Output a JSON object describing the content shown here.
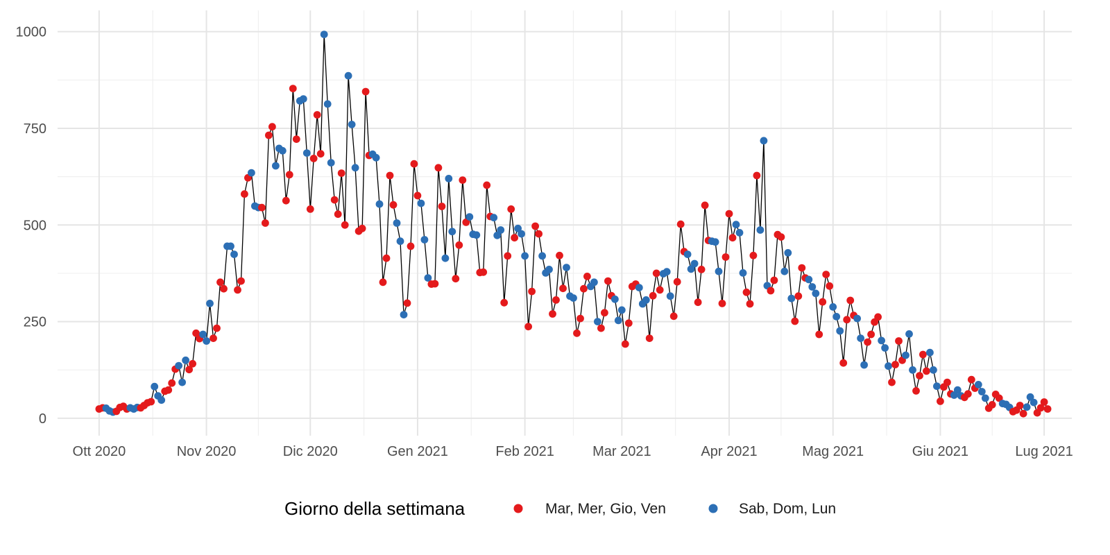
{
  "chart_data": {
    "type": "scatter",
    "title": "",
    "xlabel": "",
    "ylabel": "",
    "x_start_date": "2020-10-01",
    "xlim": [
      "2020-09-19",
      "2021-07-09"
    ],
    "ylim": [
      -45,
      1055
    ],
    "y_ticks": [
      0,
      250,
      500,
      750,
      1000
    ],
    "x_ticks": [
      {
        "date": "2020-10-01",
        "label": "Ott 2020"
      },
      {
        "date": "2020-11-01",
        "label": "Nov 2020"
      },
      {
        "date": "2020-12-01",
        "label": "Dic 2020"
      },
      {
        "date": "2021-01-01",
        "label": "Gen 2021"
      },
      {
        "date": "2021-02-01",
        "label": "Feb 2021"
      },
      {
        "date": "2021-03-01",
        "label": "Mar 2021"
      },
      {
        "date": "2021-04-01",
        "label": "Apr 2021"
      },
      {
        "date": "2021-05-01",
        "label": "Mag 2021"
      },
      {
        "date": "2021-06-01",
        "label": "Giu 2021"
      },
      {
        "date": "2021-07-01",
        "label": "Lug 2021"
      }
    ],
    "grid": true,
    "line_color": "#000000",
    "legend": {
      "position": "bottom",
      "title": "Giorno della settimana",
      "entries": [
        {
          "label": "Mar, Mer, Gio, Ven",
          "color": "#E41A1C"
        },
        {
          "label": "Sab, Dom, Lun",
          "color": "#2C6FB5"
        }
      ]
    },
    "series_note": "values are daily counts starting 2020-10-01 (Thursday); day-of-week determines color group",
    "values": [
      24,
      27,
      26,
      19,
      16,
      18,
      28,
      31,
      24,
      27,
      24,
      28,
      27,
      33,
      40,
      43,
      82,
      58,
      47,
      70,
      73,
      91,
      127,
      136,
      93,
      150,
      126,
      141,
      220,
      206,
      217,
      200,
      297,
      207,
      233,
      352,
      335,
      445,
      445,
      424,
      332,
      355,
      580,
      622,
      635,
      549,
      545,
      545,
      505,
      732,
      754,
      653,
      698,
      692,
      563,
      630,
      853,
      722,
      821,
      826,
      686,
      541,
      672,
      785,
      684,
      993,
      813,
      661,
      565,
      528,
      634,
      500,
      886,
      760,
      648,
      484,
      491,
      845,
      680,
      683,
      674,
      554,
      352,
      414,
      628,
      552,
      505,
      458,
      268,
      298,
      445,
      658,
      576,
      556,
      462,
      363,
      347,
      348,
      648,
      548,
      414,
      620,
      483,
      361,
      448,
      616,
      507,
      521,
      476,
      474,
      377,
      378,
      603,
      522,
      519,
      473,
      487,
      299,
      420,
      541,
      467,
      491,
      477,
      420,
      237,
      328,
      497,
      477,
      420,
      376,
      385,
      270,
      306,
      421,
      336,
      390,
      316,
      311,
      220,
      258,
      335,
      367,
      341,
      352,
      250,
      233,
      273,
      355,
      317,
      308,
      253,
      280,
      192,
      246,
      341,
      347,
      338,
      296,
      306,
      207,
      317,
      375,
      332,
      374,
      379,
      316,
      264,
      353,
      502,
      431,
      424,
      386,
      400,
      300,
      385,
      551,
      460,
      458,
      456,
      380,
      297,
      417,
      529,
      467,
      501,
      480,
      376,
      326,
      296,
      421,
      628,
      487,
      718,
      343,
      330,
      357,
      475,
      469,
      380,
      428,
      310,
      251,
      316,
      389,
      363,
      359,
      340,
      323,
      217,
      301,
      372,
      342,
      288,
      263,
      226,
      143,
      255,
      305,
      266,
      258,
      207,
      138,
      197,
      217,
      249,
      262,
      201,
      182,
      135,
      93,
      139,
      200,
      150,
      163,
      218,
      125,
      71,
      110,
      165,
      122,
      170,
      125,
      83,
      44,
      81,
      93,
      63,
      60,
      73,
      58,
      54,
      63,
      100,
      78,
      87,
      69,
      52,
      26,
      35,
      62,
      52,
      38,
      36,
      28,
      17,
      21,
      33,
      12,
      29,
      55,
      41,
      14,
      27,
      42,
      24
    ]
  }
}
